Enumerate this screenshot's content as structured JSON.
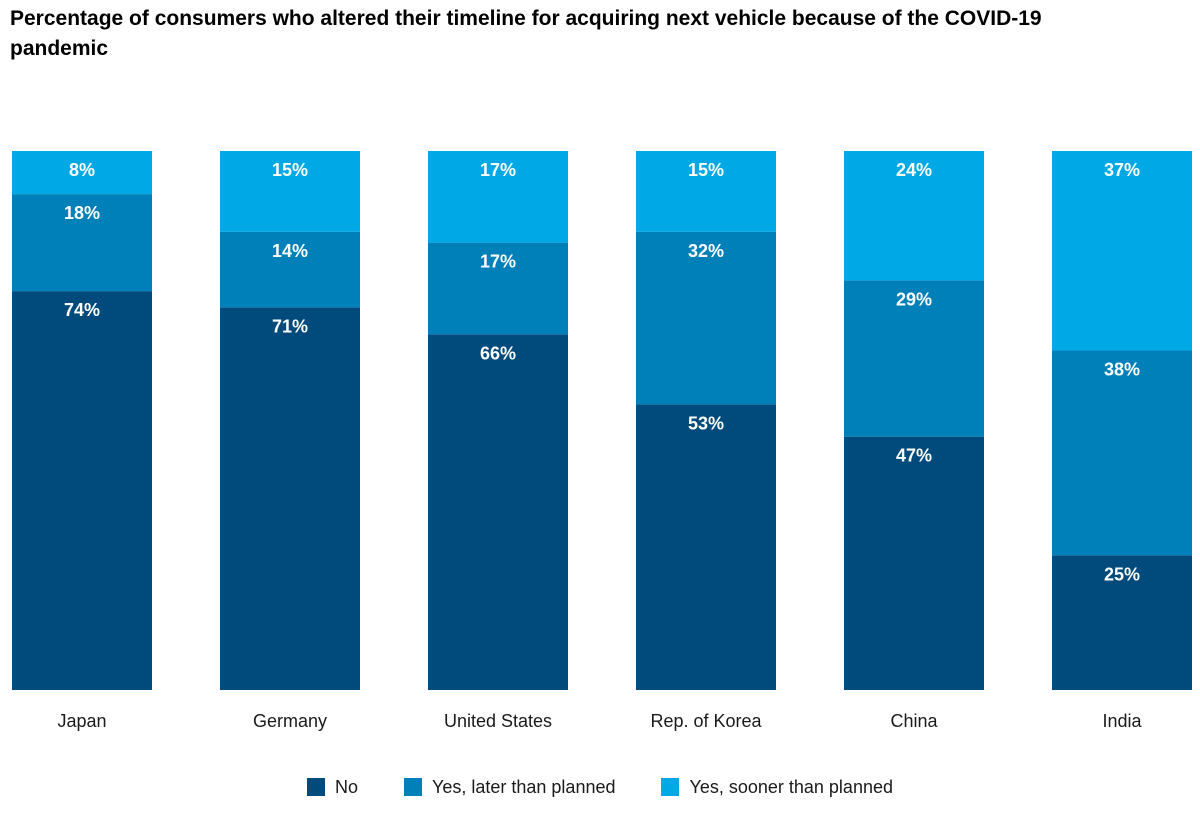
{
  "chart_data": {
    "type": "bar",
    "stacked": true,
    "title": "Percentage of consumers who altered their timeline for acquiring next vehicle because of the COVID-19 pandemic",
    "categories": [
      "Japan",
      "Germany",
      "United States",
      "Rep. of Korea",
      "China",
      "India"
    ],
    "series": [
      {
        "name": "No",
        "color": "#004b7c",
        "values": [
          74,
          71,
          66,
          53,
          47,
          25
        ],
        "labels": [
          "74%",
          "71%",
          "66%",
          "53%",
          "47%",
          "25%"
        ]
      },
      {
        "name": "Yes, later than planned",
        "color": "#0080b8",
        "values": [
          18,
          14,
          17,
          32,
          29,
          38
        ],
        "labels": [
          "18%",
          "14%",
          "17%",
          "32%",
          "29%",
          "38%"
        ]
      },
      {
        "name": "Yes, sooner than planned",
        "color": "#00a9e6",
        "values": [
          8,
          15,
          17,
          15,
          24,
          37
        ],
        "labels": [
          "8%",
          "15%",
          "17%",
          "15%",
          "24%",
          "37%"
        ]
      }
    ],
    "legend_position": "bottom",
    "grid": false
  }
}
